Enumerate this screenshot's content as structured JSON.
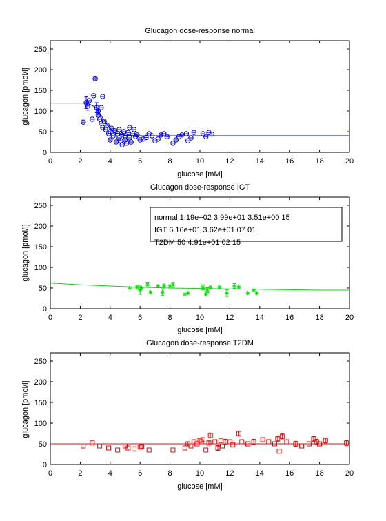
{
  "chart_data": [
    {
      "type": "scatter",
      "title": "Glucagon dose-response normal",
      "xlabel": "glucose [mM]",
      "ylabel": "glucagon [pmol/l]",
      "xlim": [
        0,
        20
      ],
      "ylim": [
        0,
        270
      ],
      "xticks": [
        "0",
        "2",
        "4",
        "6",
        "8",
        "10",
        "12",
        "14",
        "16",
        "18",
        "20"
      ],
      "yticks": [
        "0",
        "50",
        "100",
        "150",
        "200",
        "250"
      ],
      "color": "#0000ff",
      "marker": "circle",
      "fit_line": {
        "x": [
          0,
          0.6,
          1.2,
          1.8,
          2.3,
          2.6,
          3.0,
          3.3,
          3.6,
          3.9,
          4.3,
          5.0,
          6.0,
          8.0,
          12.0,
          16.0,
          20.0
        ],
        "y": [
          119,
          119,
          119,
          119,
          119,
          117,
          109,
          95,
          78,
          61,
          48,
          41,
          40,
          40,
          40,
          40,
          40
        ]
      },
      "points": [
        {
          "x": 2.2,
          "y": 73,
          "e": 0
        },
        {
          "x": 2.4,
          "y": 120,
          "e": 14
        },
        {
          "x": 2.5,
          "y": 112,
          "e": 10
        },
        {
          "x": 2.6,
          "y": 125,
          "e": 0
        },
        {
          "x": 2.8,
          "y": 80,
          "e": 0
        },
        {
          "x": 2.9,
          "y": 137,
          "e": 0
        },
        {
          "x": 3.0,
          "y": 178,
          "e": 5
        },
        {
          "x": 3.1,
          "y": 108,
          "e": 12
        },
        {
          "x": 3.2,
          "y": 100,
          "e": 8
        },
        {
          "x": 3.2,
          "y": 90,
          "e": 0
        },
        {
          "x": 3.3,
          "y": 80,
          "e": 0
        },
        {
          "x": 3.4,
          "y": 108,
          "e": 0
        },
        {
          "x": 3.4,
          "y": 70,
          "e": 0
        },
        {
          "x": 3.5,
          "y": 135,
          "e": 0
        },
        {
          "x": 3.5,
          "y": 60,
          "e": 0
        },
        {
          "x": 3.6,
          "y": 75,
          "e": 0
        },
        {
          "x": 3.7,
          "y": 55,
          "e": 0
        },
        {
          "x": 3.8,
          "y": 65,
          "e": 0
        },
        {
          "x": 3.9,
          "y": 45,
          "e": 0
        },
        {
          "x": 4.0,
          "y": 50,
          "e": 0
        },
        {
          "x": 4.0,
          "y": 30,
          "e": 0
        },
        {
          "x": 4.1,
          "y": 58,
          "e": 0
        },
        {
          "x": 4.2,
          "y": 40,
          "e": 0
        },
        {
          "x": 4.3,
          "y": 52,
          "e": 0
        },
        {
          "x": 4.4,
          "y": 25,
          "e": 0
        },
        {
          "x": 4.5,
          "y": 45,
          "e": 0
        },
        {
          "x": 4.6,
          "y": 35,
          "e": 0
        },
        {
          "x": 4.6,
          "y": 55,
          "e": 0
        },
        {
          "x": 4.7,
          "y": 28,
          "e": 0
        },
        {
          "x": 4.8,
          "y": 42,
          "e": 0
        },
        {
          "x": 4.8,
          "y": 18,
          "e": 0
        },
        {
          "x": 4.9,
          "y": 50,
          "e": 0
        },
        {
          "x": 5.0,
          "y": 30,
          "e": 0
        },
        {
          "x": 5.0,
          "y": 40,
          "e": 0
        },
        {
          "x": 5.1,
          "y": 22,
          "e": 0
        },
        {
          "x": 5.2,
          "y": 48,
          "e": 0
        },
        {
          "x": 5.3,
          "y": 35,
          "e": 0
        },
        {
          "x": 5.3,
          "y": 60,
          "e": 0
        },
        {
          "x": 5.4,
          "y": 25,
          "e": 0
        },
        {
          "x": 5.5,
          "y": 45,
          "e": 0
        },
        {
          "x": 5.6,
          "y": 55,
          "e": 0
        },
        {
          "x": 5.7,
          "y": 38,
          "e": 0
        },
        {
          "x": 5.8,
          "y": 42,
          "e": 0
        },
        {
          "x": 6.0,
          "y": 30,
          "e": 0
        },
        {
          "x": 6.2,
          "y": 32,
          "e": 0
        },
        {
          "x": 6.4,
          "y": 36,
          "e": 0
        },
        {
          "x": 6.6,
          "y": 45,
          "e": 0
        },
        {
          "x": 6.8,
          "y": 40,
          "e": 0
        },
        {
          "x": 7.0,
          "y": 28,
          "e": 0
        },
        {
          "x": 7.2,
          "y": 32,
          "e": 0
        },
        {
          "x": 7.4,
          "y": 42,
          "e": 0
        },
        {
          "x": 7.6,
          "y": 45,
          "e": 0
        },
        {
          "x": 7.8,
          "y": 38,
          "e": 0
        },
        {
          "x": 8.2,
          "y": 22,
          "e": 0
        },
        {
          "x": 8.4,
          "y": 30,
          "e": 0
        },
        {
          "x": 8.6,
          "y": 38,
          "e": 0
        },
        {
          "x": 8.8,
          "y": 42,
          "e": 0
        },
        {
          "x": 9.1,
          "y": 45,
          "e": 0
        },
        {
          "x": 9.2,
          "y": 28,
          "e": 0
        },
        {
          "x": 9.4,
          "y": 35,
          "e": 0
        },
        {
          "x": 9.6,
          "y": 48,
          "e": 0
        },
        {
          "x": 10.2,
          "y": 45,
          "e": 0
        },
        {
          "x": 10.4,
          "y": 38,
          "e": 0
        },
        {
          "x": 10.6,
          "y": 48,
          "e": 0
        },
        {
          "x": 10.8,
          "y": 44,
          "e": 0
        }
      ]
    },
    {
      "type": "scatter",
      "title": "Glucagon dose-response IGT",
      "xlabel": "glucose [mM]",
      "ylabel": "glucagon [pmol/l]",
      "xlim": [
        0,
        20
      ],
      "ylim": [
        0,
        270
      ],
      "xticks": [
        "0",
        "2",
        "4",
        "6",
        "8",
        "10",
        "12",
        "14",
        "16",
        "18",
        "20"
      ],
      "yticks": [
        "0",
        "50",
        "100",
        "150",
        "200",
        "250"
      ],
      "color": "#00dd00",
      "marker": "star",
      "legend_lines": [
        "normal 1.19e+02 3.99e+01 3.51e+00 15",
        "IGT 6.16e+01 3.62e+01 07 01",
        "T2DM 50 4.91e+01 02 15"
      ],
      "fit_line": {
        "x": [
          0,
          2,
          4,
          6,
          8,
          10,
          12,
          14,
          16,
          18,
          20
        ],
        "y": [
          62,
          58,
          55,
          52,
          50,
          49,
          48,
          47,
          46,
          45,
          45
        ]
      },
      "points": [
        {
          "x": 5.3,
          "y": 50,
          "e": 0
        },
        {
          "x": 5.8,
          "y": 52,
          "e": 5
        },
        {
          "x": 6.0,
          "y": 45,
          "e": 10
        },
        {
          "x": 6.1,
          "y": 50,
          "e": 0
        },
        {
          "x": 6.5,
          "y": 58,
          "e": 6
        },
        {
          "x": 6.7,
          "y": 40,
          "e": 0
        },
        {
          "x": 7.2,
          "y": 55,
          "e": 0
        },
        {
          "x": 7.5,
          "y": 40,
          "e": 8
        },
        {
          "x": 7.6,
          "y": 55,
          "e": 5
        },
        {
          "x": 8.0,
          "y": 55,
          "e": 0
        },
        {
          "x": 8.2,
          "y": 58,
          "e": 6
        },
        {
          "x": 9.0,
          "y": 35,
          "e": 0
        },
        {
          "x": 9.2,
          "y": 38,
          "e": 0
        },
        {
          "x": 10.2,
          "y": 52,
          "e": 6
        },
        {
          "x": 10.4,
          "y": 35,
          "e": 0
        },
        {
          "x": 10.5,
          "y": 45,
          "e": 6
        },
        {
          "x": 10.7,
          "y": 52,
          "e": 0
        },
        {
          "x": 11.3,
          "y": 52,
          "e": 0
        },
        {
          "x": 11.8,
          "y": 38,
          "e": 8
        },
        {
          "x": 12.3,
          "y": 55,
          "e": 6
        },
        {
          "x": 12.6,
          "y": 52,
          "e": 0
        },
        {
          "x": 13.2,
          "y": 38,
          "e": 0
        },
        {
          "x": 13.6,
          "y": 45,
          "e": 0
        },
        {
          "x": 13.8,
          "y": 38,
          "e": 0
        }
      ]
    },
    {
      "type": "scatter",
      "title": "Glucagon dose-response T2DM",
      "xlabel": "glucose [mM]",
      "ylabel": "glucagon [pmol/l]",
      "xlim": [
        0,
        20
      ],
      "ylim": [
        0,
        270
      ],
      "xticks": [
        "0",
        "2",
        "4",
        "6",
        "8",
        "10",
        "12",
        "14",
        "16",
        "18",
        "20"
      ],
      "yticks": [
        "0",
        "50",
        "100",
        "150",
        "200",
        "250"
      ],
      "color": "#ff0000",
      "marker": "square",
      "fit_line": {
        "x": [
          0,
          20
        ],
        "y": [
          50,
          50
        ]
      },
      "points": [
        {
          "x": 2.2,
          "y": 45,
          "e": 0
        },
        {
          "x": 2.8,
          "y": 52,
          "e": 0
        },
        {
          "x": 3.3,
          "y": 45,
          "e": 0
        },
        {
          "x": 3.9,
          "y": 40,
          "e": 0
        },
        {
          "x": 4.5,
          "y": 35,
          "e": 0
        },
        {
          "x": 5.0,
          "y": 45,
          "e": 0
        },
        {
          "x": 5.2,
          "y": 40,
          "e": 0
        },
        {
          "x": 5.6,
          "y": 38,
          "e": 0
        },
        {
          "x": 6.0,
          "y": 42,
          "e": 0
        },
        {
          "x": 6.1,
          "y": 44,
          "e": 0
        },
        {
          "x": 6.6,
          "y": 35,
          "e": 0
        },
        {
          "x": 8.2,
          "y": 35,
          "e": 0
        },
        {
          "x": 9.0,
          "y": 40,
          "e": 0
        },
        {
          "x": 9.2,
          "y": 50,
          "e": 5
        },
        {
          "x": 9.4,
          "y": 45,
          "e": 0
        },
        {
          "x": 9.6,
          "y": 55,
          "e": 0
        },
        {
          "x": 9.8,
          "y": 50,
          "e": 0
        },
        {
          "x": 10.0,
          "y": 58,
          "e": 0
        },
        {
          "x": 10.1,
          "y": 55,
          "e": 0
        },
        {
          "x": 10.2,
          "y": 60,
          "e": 0
        },
        {
          "x": 10.4,
          "y": 35,
          "e": 0
        },
        {
          "x": 10.6,
          "y": 52,
          "e": 5
        },
        {
          "x": 10.7,
          "y": 70,
          "e": 6
        },
        {
          "x": 11.0,
          "y": 55,
          "e": 0
        },
        {
          "x": 11.2,
          "y": 40,
          "e": 6
        },
        {
          "x": 11.4,
          "y": 58,
          "e": 0
        },
        {
          "x": 11.5,
          "y": 45,
          "e": 0
        },
        {
          "x": 11.7,
          "y": 55,
          "e": 6
        },
        {
          "x": 12.0,
          "y": 55,
          "e": 0
        },
        {
          "x": 12.2,
          "y": 48,
          "e": 0
        },
        {
          "x": 12.6,
          "y": 75,
          "e": 6
        },
        {
          "x": 12.8,
          "y": 55,
          "e": 0
        },
        {
          "x": 13.2,
          "y": 50,
          "e": 0
        },
        {
          "x": 13.6,
          "y": 55,
          "e": 6
        },
        {
          "x": 14.2,
          "y": 60,
          "e": 0
        },
        {
          "x": 14.6,
          "y": 55,
          "e": 0
        },
        {
          "x": 15.0,
          "y": 50,
          "e": 0
        },
        {
          "x": 15.2,
          "y": 62,
          "e": 6
        },
        {
          "x": 15.3,
          "y": 32,
          "e": 0
        },
        {
          "x": 15.5,
          "y": 68,
          "e": 6
        },
        {
          "x": 15.8,
          "y": 55,
          "e": 0
        },
        {
          "x": 16.4,
          "y": 50,
          "e": 6
        },
        {
          "x": 16.8,
          "y": 45,
          "e": 0
        },
        {
          "x": 17.3,
          "y": 50,
          "e": 0
        },
        {
          "x": 17.6,
          "y": 62,
          "e": 6
        },
        {
          "x": 17.8,
          "y": 55,
          "e": 6
        },
        {
          "x": 18.0,
          "y": 50,
          "e": 0
        },
        {
          "x": 18.4,
          "y": 58,
          "e": 6
        },
        {
          "x": 19.8,
          "y": 52,
          "e": 6
        }
      ]
    }
  ]
}
